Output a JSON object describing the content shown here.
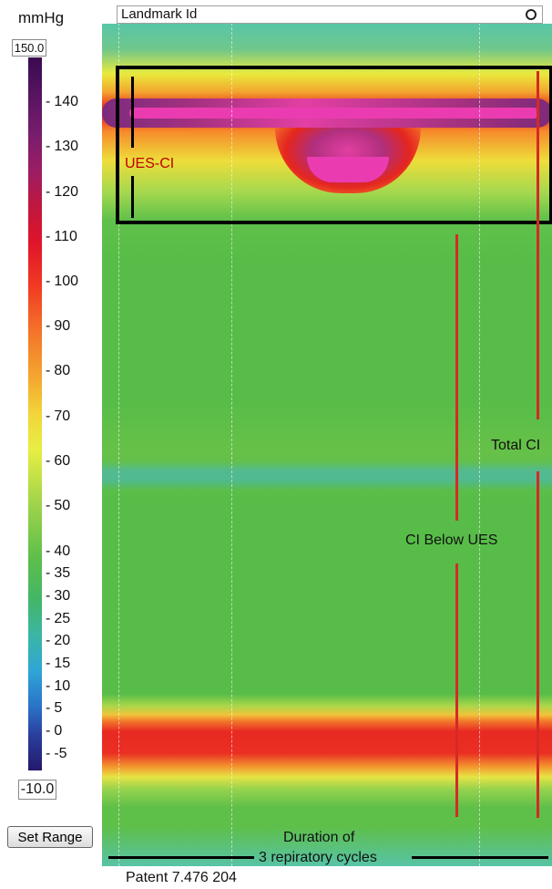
{
  "scale": {
    "unit_label": "mmHg",
    "max_value": "150.0",
    "min_value": "-10.0",
    "ticks": [
      "140",
      "130",
      "120",
      "110",
      "100",
      "90",
      "80",
      "70",
      "60",
      "50",
      "40",
      "35",
      "30",
      "25",
      "20",
      "15",
      "10",
      "5",
      "0",
      "-5"
    ],
    "set_range_label": "Set Range"
  },
  "plot": {
    "landmark_label": "Landmark Id",
    "ues_label": "UES-CI",
    "total_ci_label": "Total CI",
    "ci_below_ues_label": "CI Below  UES",
    "duration_line1": "Duration of",
    "duration_line2": "3 repiratory cycles",
    "patent_text": "Patent 7.476 204"
  },
  "colors": {
    "annotation_red": "#d42a26",
    "ues_label_red": "#c00000",
    "box_black": "#000000"
  }
}
